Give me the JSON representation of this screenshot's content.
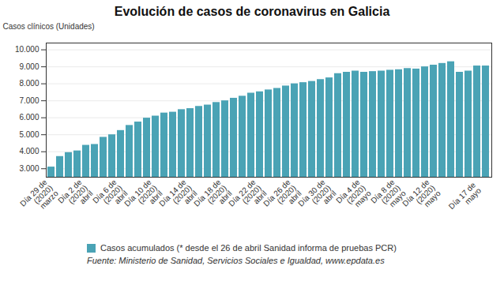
{
  "chart_data": {
    "type": "bar",
    "title": "Evolución de casos de coronavirus en Galicia",
    "ylabel": "Casos clínicos (Unidades)",
    "source": "Fuente: Ministerio de Sanidad, Servicios Sociales e Igualdad, www.epdata.es",
    "categories": [
      "Día 29 de\n(2020)\nmarzo",
      null,
      null,
      null,
      "Día 2 de\n(2020)\nabril",
      null,
      null,
      null,
      "Día 6 de\n(2020)\nabril",
      null,
      null,
      null,
      "Día 10 de\n(2020)\nabril",
      null,
      null,
      null,
      "Día 14 de\n(2020)\nabril",
      null,
      null,
      null,
      "Día 18 de\n(2020)\nabril",
      null,
      null,
      null,
      "Día 22 de\n(2020)\nabril",
      null,
      null,
      null,
      "Día 26 de\n(2020)\nabril",
      null,
      null,
      null,
      "Día 30 de\n(2020)\nabril",
      null,
      null,
      null,
      "Día 4 de\n(2020)\nmayo",
      null,
      null,
      null,
      "Día 8 de\n(2020)\nmayo",
      null,
      null,
      null,
      "Día 12 de\n(2020)\nmayo",
      null,
      null,
      null,
      null,
      "Día 17 de\nmayo",
      null
    ],
    "series": [
      {
        "name": "Casos acumulados (* desde el 26 de abril Sanidad informa de pruebas PCR)",
        "color": "#4aa3b5",
        "values": [
          3100,
          3720,
          3950,
          4050,
          4380,
          4430,
          4850,
          5000,
          5250,
          5550,
          5750,
          5980,
          6100,
          6280,
          6330,
          6480,
          6540,
          6670,
          6750,
          6900,
          7000,
          7150,
          7270,
          7450,
          7530,
          7640,
          7730,
          7870,
          8000,
          8070,
          8140,
          8250,
          8350,
          8600,
          8680,
          8750,
          8680,
          8720,
          8750,
          8800,
          8830,
          8900,
          8870,
          9000,
          9100,
          9200,
          9300,
          8680,
          8750,
          9050,
          9050
        ]
      }
    ],
    "ylim": [
      2500,
      10400
    ],
    "yticks": [
      {
        "value": 3000,
        "label": "3.000"
      },
      {
        "value": 4000,
        "label": "4.000"
      },
      {
        "value": 5000,
        "label": "5.000"
      },
      {
        "value": 6000,
        "label": "6.000"
      },
      {
        "value": 7000,
        "label": "7.000"
      },
      {
        "value": 8000,
        "label": "8.000"
      },
      {
        "value": 9000,
        "label": "9.000"
      },
      {
        "value": 10000,
        "label": "10.000"
      }
    ],
    "grid": true,
    "legend": "bottom"
  }
}
